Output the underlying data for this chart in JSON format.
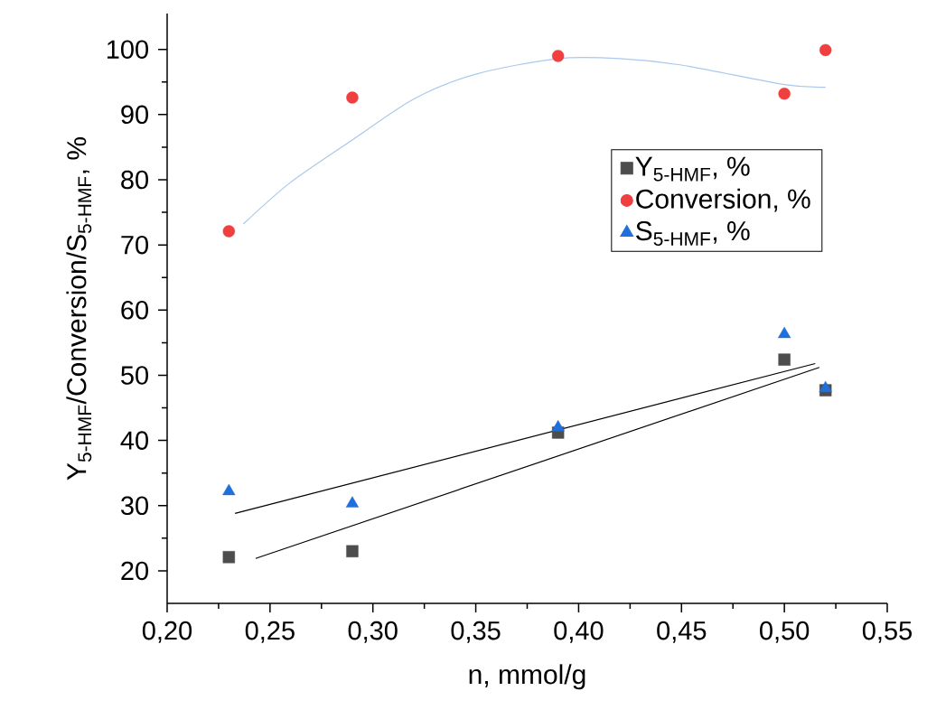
{
  "chart_data": {
    "type": "scatter",
    "xlabel": "n, mmol/g",
    "ylabel": "Y$_{5-HMF}$/Conversion/S$_{5-HMF}$, %",
    "xlim": [
      0.2,
      0.55
    ],
    "ylim": [
      15,
      105.5
    ],
    "xticks": [
      {
        "value": 0.2,
        "label": "0,20"
      },
      {
        "value": 0.25,
        "label": "0,25"
      },
      {
        "value": 0.3,
        "label": "0,30"
      },
      {
        "value": 0.35,
        "label": "0,35"
      },
      {
        "value": 0.4,
        "label": "0,40"
      },
      {
        "value": 0.45,
        "label": "0,45"
      },
      {
        "value": 0.5,
        "label": "0,50"
      },
      {
        "value": 0.55,
        "label": "0,55"
      }
    ],
    "yticks": [
      20,
      30,
      40,
      50,
      60,
      70,
      80,
      90,
      100
    ],
    "legend": "top right",
    "grid": false,
    "series": [
      {
        "name": "Y$_{5-HMF}$, %",
        "color": "#4d4d4d",
        "marker": "square",
        "x": [
          0.23,
          0.29,
          0.39,
          0.5,
          0.52
        ],
        "values": [
          22.1,
          23.0,
          41.2,
          52.4,
          47.7
        ]
      },
      {
        "name": "Conversion, %",
        "color": "#ef3f3f",
        "marker": "circle",
        "x": [
          0.23,
          0.29,
          0.39,
          0.5,
          0.52
        ],
        "values": [
          72.1,
          92.6,
          99.0,
          93.2,
          99.9
        ]
      },
      {
        "name": "S$_{5-HMF}$, %",
        "color": "#1f6fdc",
        "marker": "triangle",
        "x": [
          0.23,
          0.29,
          0.39,
          0.5,
          0.52
        ],
        "values": [
          32.2,
          30.3,
          42.0,
          56.3,
          48.0
        ]
      },
      {
        "type": "line",
        "color": "#000000",
        "marker": "none",
        "x": [
          0.233,
          0.515
        ],
        "values": [
          28.8,
          51.8
        ]
      },
      {
        "type": "line",
        "color": "#000000",
        "marker": "none",
        "x": [
          0.243,
          0.517
        ],
        "values": [
          21.9,
          51.2
        ]
      },
      {
        "type": "line",
        "color": "#a8c8ec",
        "marker": "none",
        "x": [
          0.237,
          0.26,
          0.29,
          0.32,
          0.35,
          0.39,
          0.42,
          0.45,
          0.5,
          0.52
        ],
        "values": [
          73.2,
          79.6,
          86.1,
          92.4,
          96.2,
          98.6,
          98.6,
          97.6,
          94.6,
          94.2
        ]
      }
    ]
  }
}
